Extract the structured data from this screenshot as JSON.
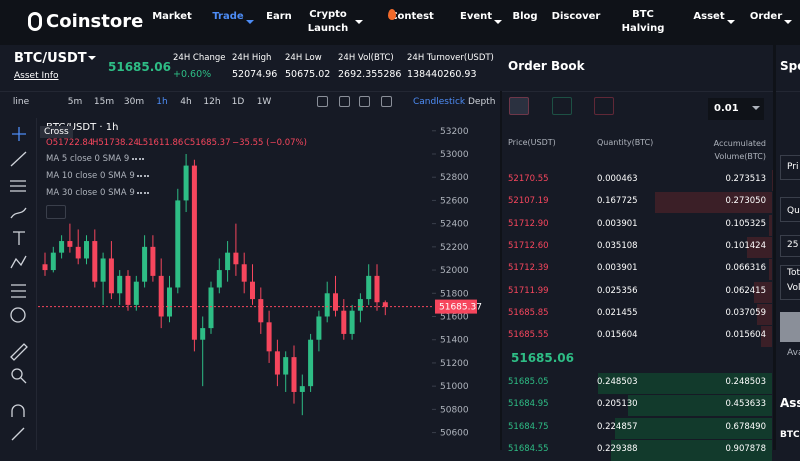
{
  "nav": {
    "logo": "Coinstore",
    "items": [
      {
        "label": "Market"
      },
      {
        "label": "Trade",
        "active": true,
        "caret": true
      },
      {
        "label": "Earn"
      },
      {
        "label": "Crypto Launch",
        "caret": true
      },
      {
        "label": "Contest"
      },
      {
        "label": "Event",
        "caret": true
      },
      {
        "label": "Blog"
      },
      {
        "label": "Discover"
      },
      {
        "label": "BTC Halving"
      },
      {
        "label": "Asset",
        "caret": true
      },
      {
        "label": "Order",
        "caret": true
      }
    ]
  },
  "ticker": {
    "pair": "BTC/USDT",
    "asset_info": "Asset Info",
    "price": "51685.06",
    "stats": [
      {
        "label": "24H Change",
        "value": "+0.60%"
      },
      {
        "label": "24H High",
        "value": "52074.96"
      },
      {
        "label": "24H Low",
        "value": "50675.02"
      },
      {
        "label": "24H Vol(BTC)",
        "value": "2692.355286"
      },
      {
        "label": "24H Turnover(USDT)",
        "value": "138440260.93"
      }
    ]
  },
  "toolbar": {
    "intervals": [
      "line",
      "5m",
      "15m",
      "30m",
      "1h",
      "4h",
      "12h",
      "1D",
      "1W"
    ],
    "active_interval": 4,
    "views": [
      "Candlestick",
      "Depth"
    ]
  },
  "chart_data": {
    "type": "candlestick",
    "title": "BTC/USDT · 1h",
    "tooltip": "Cross",
    "ohlc_legend": [
      "O51722.84",
      "H51738.24",
      "L51611.86",
      "C51685.37",
      "−35.55 (−0.07%)"
    ],
    "indicators": [
      "MA 5 close 0 SMA 9",
      "MA 10 close 0 SMA 9",
      "MA 30 close 0 SMA 9"
    ],
    "up_color": "#2ebd85",
    "down_color": "#f6465d",
    "grid": false,
    "ylim": [
      50450,
      53310
    ],
    "yticks": [
      53200,
      53000,
      52800,
      52600,
      52400,
      52200,
      52000,
      51800,
      51600,
      51400,
      51200,
      51000,
      50800,
      50600
    ],
    "candles": [
      [
        52050,
        52150,
        51950,
        52000
      ],
      [
        52000,
        52200,
        51980,
        52150
      ],
      [
        52150,
        52300,
        52100,
        52250
      ],
      [
        52250,
        52400,
        52150,
        52200
      ],
      [
        52200,
        52350,
        52050,
        52100
      ],
      [
        52100,
        52300,
        52050,
        52250
      ],
      [
        52250,
        52350,
        51850,
        51900
      ],
      [
        51900,
        52150,
        51700,
        52100
      ],
      [
        52100,
        52250,
        51750,
        51800
      ],
      [
        51800,
        52000,
        51700,
        51950
      ],
      [
        51950,
        52000,
        51650,
        51700
      ],
      [
        51700,
        51950,
        51650,
        51900
      ],
      [
        51900,
        52300,
        51850,
        52200
      ],
      [
        52200,
        52300,
        51900,
        51950
      ],
      [
        51950,
        52100,
        51500,
        51600
      ],
      [
        51600,
        51950,
        51550,
        51850
      ],
      [
        51850,
        52700,
        51800,
        52600
      ],
      [
        52600,
        53000,
        52500,
        52900
      ],
      [
        52900,
        52950,
        51300,
        51400
      ],
      [
        51400,
        51600,
        51000,
        51500
      ],
      [
        51500,
        51900,
        51450,
        51850
      ],
      [
        51850,
        52100,
        51800,
        52000
      ],
      [
        52000,
        52250,
        51900,
        52150
      ],
      [
        52150,
        52400,
        51950,
        52050
      ],
      [
        52050,
        52150,
        51800,
        51900
      ],
      [
        51900,
        52050,
        51700,
        51750
      ],
      [
        51750,
        51850,
        51450,
        51550
      ],
      [
        51550,
        51650,
        51200,
        51300
      ],
      [
        51300,
        51400,
        51000,
        51100
      ],
      [
        51100,
        51300,
        50950,
        51250
      ],
      [
        51250,
        51350,
        50850,
        50950
      ],
      [
        50950,
        51100,
        50750,
        51000
      ],
      [
        51000,
        51450,
        50950,
        51400
      ],
      [
        51400,
        51650,
        51300,
        51600
      ],
      [
        51600,
        51900,
        51550,
        51800
      ],
      [
        51800,
        51950,
        51600,
        51650
      ],
      [
        51650,
        51750,
        51400,
        51450
      ],
      [
        51450,
        51700,
        51400,
        51650
      ],
      [
        51650,
        51800,
        51550,
        51750
      ],
      [
        51750,
        52050,
        51700,
        51950
      ],
      [
        51950,
        52050,
        51650,
        51722.84
      ],
      [
        51722.84,
        51738.24,
        51611.86,
        51685.37
      ]
    ]
  },
  "order_book": {
    "title": "Order Book",
    "precision": "0.01",
    "headers": [
      "Price(USDT)",
      "Quantity(BTC)",
      "Accumulated Volume(BTC)"
    ],
    "asks": [
      [
        "52170.55",
        "0.000463",
        "0.273513"
      ],
      [
        "52107.19",
        "0.167725",
        "0.273050"
      ],
      [
        "51712.90",
        "0.003901",
        "0.105325"
      ],
      [
        "51712.60",
        "0.035108",
        "0.101424"
      ],
      [
        "51712.39",
        "0.003901",
        "0.066316"
      ],
      [
        "51711.99",
        "0.025356",
        "0.062415"
      ],
      [
        "51685.85",
        "0.021455",
        "0.037059"
      ],
      [
        "51685.55",
        "0.015604",
        "0.015604"
      ]
    ],
    "mid_price": "51685.06",
    "bids": [
      [
        "51685.05",
        "0.248503",
        "0.248503"
      ],
      [
        "51684.95",
        "0.205130",
        "0.453633"
      ],
      [
        "51684.75",
        "0.224857",
        "0.678490"
      ],
      [
        "51684.55",
        "0.229388",
        "0.907878"
      ]
    ]
  },
  "side_panel": {
    "title": "Spo",
    "fields": [
      "Pri",
      "Qua",
      "25",
      "Tot",
      "Vol",
      "Avail"
    ],
    "section": "Asse",
    "asset": "BTC"
  }
}
